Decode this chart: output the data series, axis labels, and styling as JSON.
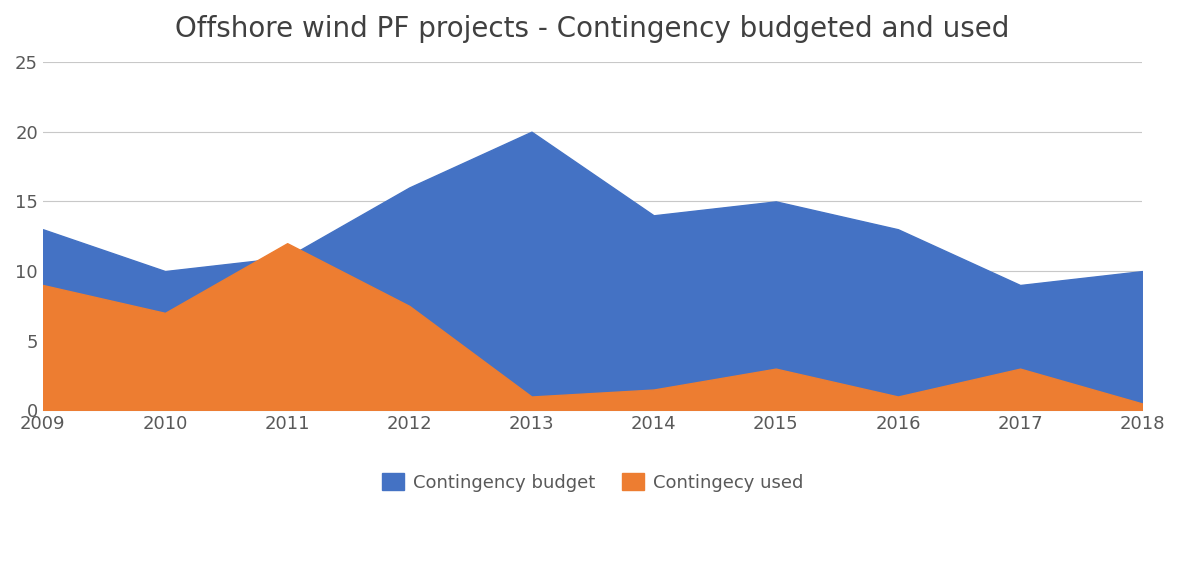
{
  "title": "Offshore wind PF projects - Contingency budgeted and used",
  "years": [
    2009,
    2010,
    2011,
    2012,
    2013,
    2014,
    2015,
    2016,
    2017,
    2018
  ],
  "budget": [
    13,
    10,
    11,
    16,
    20,
    14,
    15,
    13,
    9,
    10
  ],
  "used": [
    9,
    7,
    12,
    7.5,
    1,
    1.5,
    3,
    1,
    3,
    0.5
  ],
  "budget_color": "#4472C4",
  "used_color": "#ED7D31",
  "background_color": "#FFFFFF",
  "grid_color": "#C8C8C8",
  "title_color": "#404040",
  "title_fontsize": 20,
  "legend_fontsize": 13,
  "tick_fontsize": 13,
  "ylim": [
    0,
    25
  ],
  "yticks": [
    0,
    5,
    10,
    15,
    20,
    25
  ],
  "xtick_labels": [
    "2009",
    "2010",
    "2011",
    "2012",
    "2013",
    "2014",
    "2015",
    "2016",
    "2017",
    "2018"
  ],
  "xtick_positions": [
    2009,
    2010,
    2011,
    2012,
    2013,
    2014,
    2015,
    2016,
    2017,
    2018
  ],
  "legend_labels": [
    "Contingency budget",
    "Contingecy used"
  ]
}
